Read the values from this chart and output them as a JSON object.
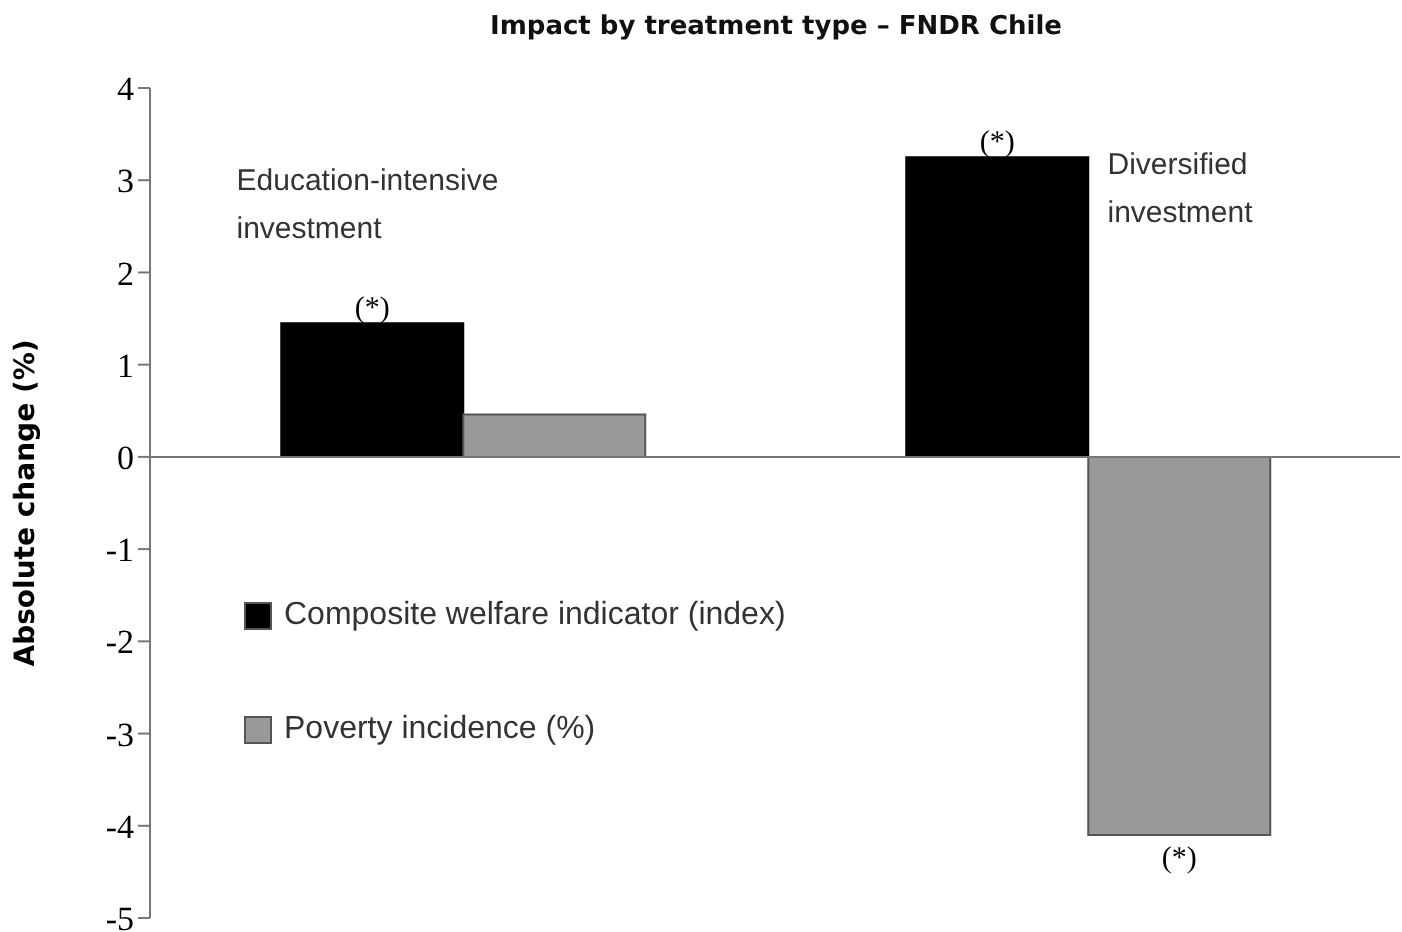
{
  "chart_data": {
    "type": "bar",
    "title": "Impact by treatment type – FNDR Chile",
    "ylabel": "Absolute change (%)",
    "categories": [
      "Education-intensive investment",
      "Diversified investment"
    ],
    "series": [
      {
        "name": "Composite welfare indicator (index)",
        "color": "#000000",
        "values": [
          1.45,
          3.25
        ],
        "value_labels": [
          "(*)",
          "(*)"
        ]
      },
      {
        "name": "Poverty incidence (%)",
        "color": "#999999",
        "values": [
          0.46,
          -4.1
        ],
        "value_labels": [
          null,
          "(*)"
        ]
      }
    ],
    "ylim": [
      -5,
      4
    ],
    "yticks": [
      -5,
      -4,
      -3,
      -2,
      -1,
      0,
      1,
      2,
      3,
      4
    ],
    "ref_lines": [
      {
        "axis": "y",
        "value": 0,
        "color": "#777777"
      }
    ],
    "legend": "left"
  }
}
